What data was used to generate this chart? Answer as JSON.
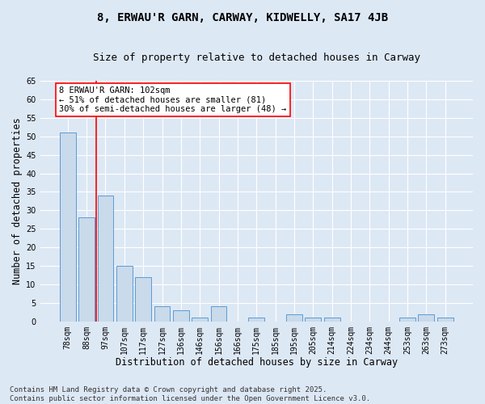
{
  "title": "8, ERWAU'R GARN, CARWAY, KIDWELLY, SA17 4JB",
  "subtitle": "Size of property relative to detached houses in Carway",
  "xlabel": "Distribution of detached houses by size in Carway",
  "ylabel": "Number of detached properties",
  "categories": [
    "78sqm",
    "88sqm",
    "97sqm",
    "107sqm",
    "117sqm",
    "127sqm",
    "136sqm",
    "146sqm",
    "156sqm",
    "166sqm",
    "175sqm",
    "185sqm",
    "195sqm",
    "205sqm",
    "214sqm",
    "224sqm",
    "234sqm",
    "244sqm",
    "253sqm",
    "263sqm",
    "273sqm"
  ],
  "values": [
    51,
    28,
    34,
    15,
    12,
    4,
    3,
    1,
    4,
    0,
    1,
    0,
    2,
    1,
    1,
    0,
    0,
    0,
    1,
    2,
    1
  ],
  "bar_color": "#c9daea",
  "bar_edge_color": "#5b9bd5",
  "vline_x": 1.5,
  "vline_color": "red",
  "annotation_text": "8 ERWAU'R GARN: 102sqm\n← 51% of detached houses are smaller (81)\n30% of semi-detached houses are larger (48) →",
  "annotation_box_color": "white",
  "annotation_box_edge": "red",
  "ylim": [
    0,
    65
  ],
  "yticks": [
    0,
    5,
    10,
    15,
    20,
    25,
    30,
    35,
    40,
    45,
    50,
    55,
    60,
    65
  ],
  "footer": "Contains HM Land Registry data © Crown copyright and database right 2025.\nContains public sector information licensed under the Open Government Licence v3.0.",
  "bg_color": "#dde8f5",
  "plot_bg_color": "#dde8f5",
  "grid_color": "white",
  "title_fontsize": 10,
  "subtitle_fontsize": 9,
  "axis_label_fontsize": 8.5,
  "tick_fontsize": 7,
  "footer_fontsize": 6.5,
  "annotation_fontsize": 7.5
}
